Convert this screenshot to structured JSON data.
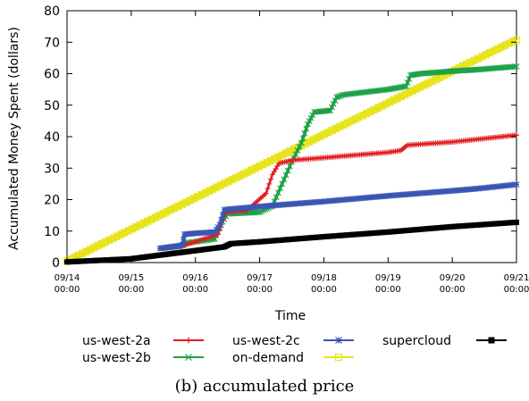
{
  "chart_data": {
    "type": "line",
    "xlabel": "Time",
    "ylabel": "Accumulated Money Spent (dollars)",
    "ylim": [
      0,
      80
    ],
    "yticks": [
      0,
      10,
      20,
      30,
      40,
      50,
      60,
      70,
      80
    ],
    "xlim": [
      0,
      7
    ],
    "xticks": [
      {
        "value": 0,
        "date": "09/14",
        "time": "00:00"
      },
      {
        "value": 1,
        "date": "09/15",
        "time": "00:00"
      },
      {
        "value": 2,
        "date": "09/16",
        "time": "00:00"
      },
      {
        "value": 3,
        "date": "09/17",
        "time": "00:00"
      },
      {
        "value": 4,
        "date": "09/18",
        "time": "00:00"
      },
      {
        "value": 5,
        "date": "09/19",
        "time": "00:00"
      },
      {
        "value": 6,
        "date": "09/20",
        "time": "00:00"
      },
      {
        "value": 7,
        "date": "09/21",
        "time": "00:00"
      }
    ],
    "legend_position": "bottom",
    "caption": "(b) accumulated price",
    "series": [
      {
        "name": "us-west-2a",
        "color": "#e41a1c",
        "marker": "plus",
        "points": [
          [
            1.45,
            4.5
          ],
          [
            1.8,
            5.3
          ],
          [
            2.35,
            9.0
          ],
          [
            2.45,
            15.0
          ],
          [
            2.5,
            16.2
          ],
          [
            2.8,
            16.5
          ],
          [
            3.1,
            22.0
          ],
          [
            3.2,
            28.0
          ],
          [
            3.3,
            31.5
          ],
          [
            3.5,
            32.5
          ],
          [
            4.0,
            33.3
          ],
          [
            5.0,
            35.0
          ],
          [
            5.2,
            35.6
          ],
          [
            5.3,
            37.3
          ],
          [
            6.0,
            38.3
          ],
          [
            7.0,
            40.5
          ]
        ]
      },
      {
        "name": "us-west-2b",
        "color": "#1ea048",
        "marker": "x",
        "points": [
          [
            1.45,
            4.5
          ],
          [
            1.75,
            5.2
          ],
          [
            1.85,
            6.2
          ],
          [
            2.3,
            7.5
          ],
          [
            2.42,
            13.0
          ],
          [
            2.5,
            15.5
          ],
          [
            3.0,
            16.0
          ],
          [
            3.2,
            18.0
          ],
          [
            3.35,
            25.0
          ],
          [
            3.5,
            32.0
          ],
          [
            3.65,
            38.0
          ],
          [
            3.75,
            44.0
          ],
          [
            3.85,
            47.8
          ],
          [
            4.1,
            48.3
          ],
          [
            4.2,
            52.5
          ],
          [
            4.3,
            53.3
          ],
          [
            5.0,
            55.0
          ],
          [
            5.28,
            56.0
          ],
          [
            5.35,
            59.5
          ],
          [
            5.5,
            60.0
          ],
          [
            6.0,
            60.8
          ],
          [
            6.4,
            61.3
          ],
          [
            7.0,
            62.3
          ]
        ]
      },
      {
        "name": "us-west-2c",
        "color": "#3a55b4",
        "marker": "star",
        "points": [
          [
            1.45,
            4.5
          ],
          [
            1.8,
            5.5
          ],
          [
            1.83,
            9.0
          ],
          [
            2.0,
            9.3
          ],
          [
            2.3,
            9.7
          ],
          [
            2.38,
            12.0
          ],
          [
            2.45,
            16.8
          ],
          [
            3.0,
            17.8
          ],
          [
            4.0,
            19.4
          ],
          [
            5.0,
            21.2
          ],
          [
            6.0,
            22.8
          ],
          [
            6.4,
            23.5
          ],
          [
            7.0,
            24.8
          ]
        ]
      },
      {
        "name": "on-demand",
        "color": "#e7e41c",
        "marker": "square",
        "points": [
          [
            0,
            0.5
          ],
          [
            7,
            70.8
          ]
        ]
      },
      {
        "name": "supercloud",
        "color": "#000000",
        "marker": "filledsquare",
        "points": [
          [
            0,
            0.2
          ],
          [
            1.0,
            1.2
          ],
          [
            1.5,
            2.5
          ],
          [
            2.0,
            3.8
          ],
          [
            2.45,
            5.0
          ],
          [
            2.55,
            6.0
          ],
          [
            3.0,
            6.6
          ],
          [
            4.0,
            8.2
          ],
          [
            5.0,
            9.7
          ],
          [
            6.0,
            11.4
          ],
          [
            7.0,
            12.8
          ]
        ]
      }
    ]
  }
}
